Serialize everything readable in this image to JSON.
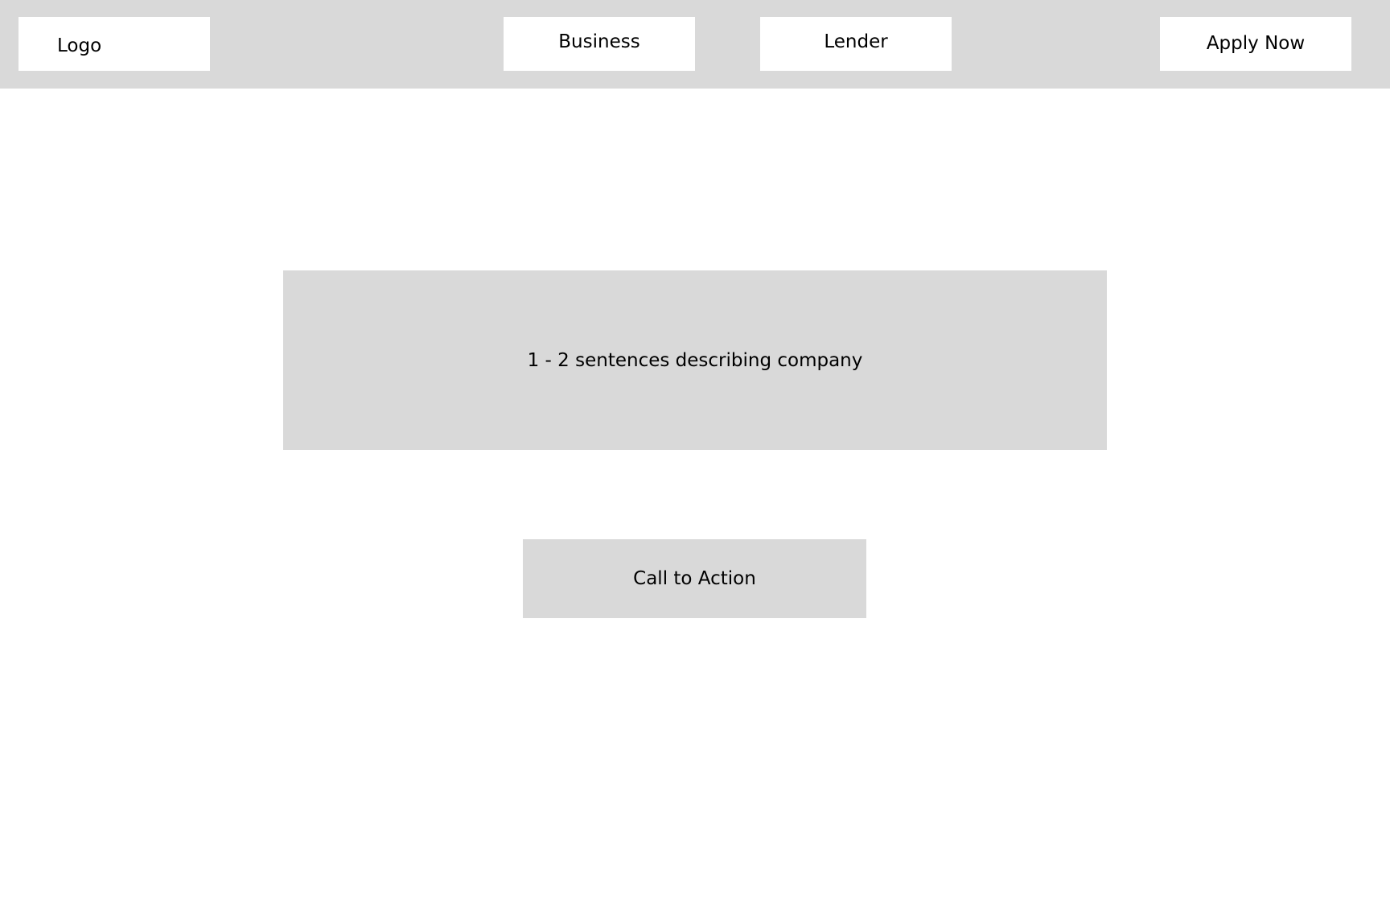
{
  "header": {
    "logo_label": "Logo",
    "nav": {
      "business_label": "Business",
      "lender_label": "Lender",
      "apply_label": "Apply Now"
    }
  },
  "main": {
    "description": "1 - 2 sentences describing company",
    "cta_label": "Call to Action"
  },
  "colors": {
    "header_bg": "#d9d9d9",
    "box_bg": "#ffffff",
    "page_bg": "#ffffff",
    "text": "#000000"
  }
}
